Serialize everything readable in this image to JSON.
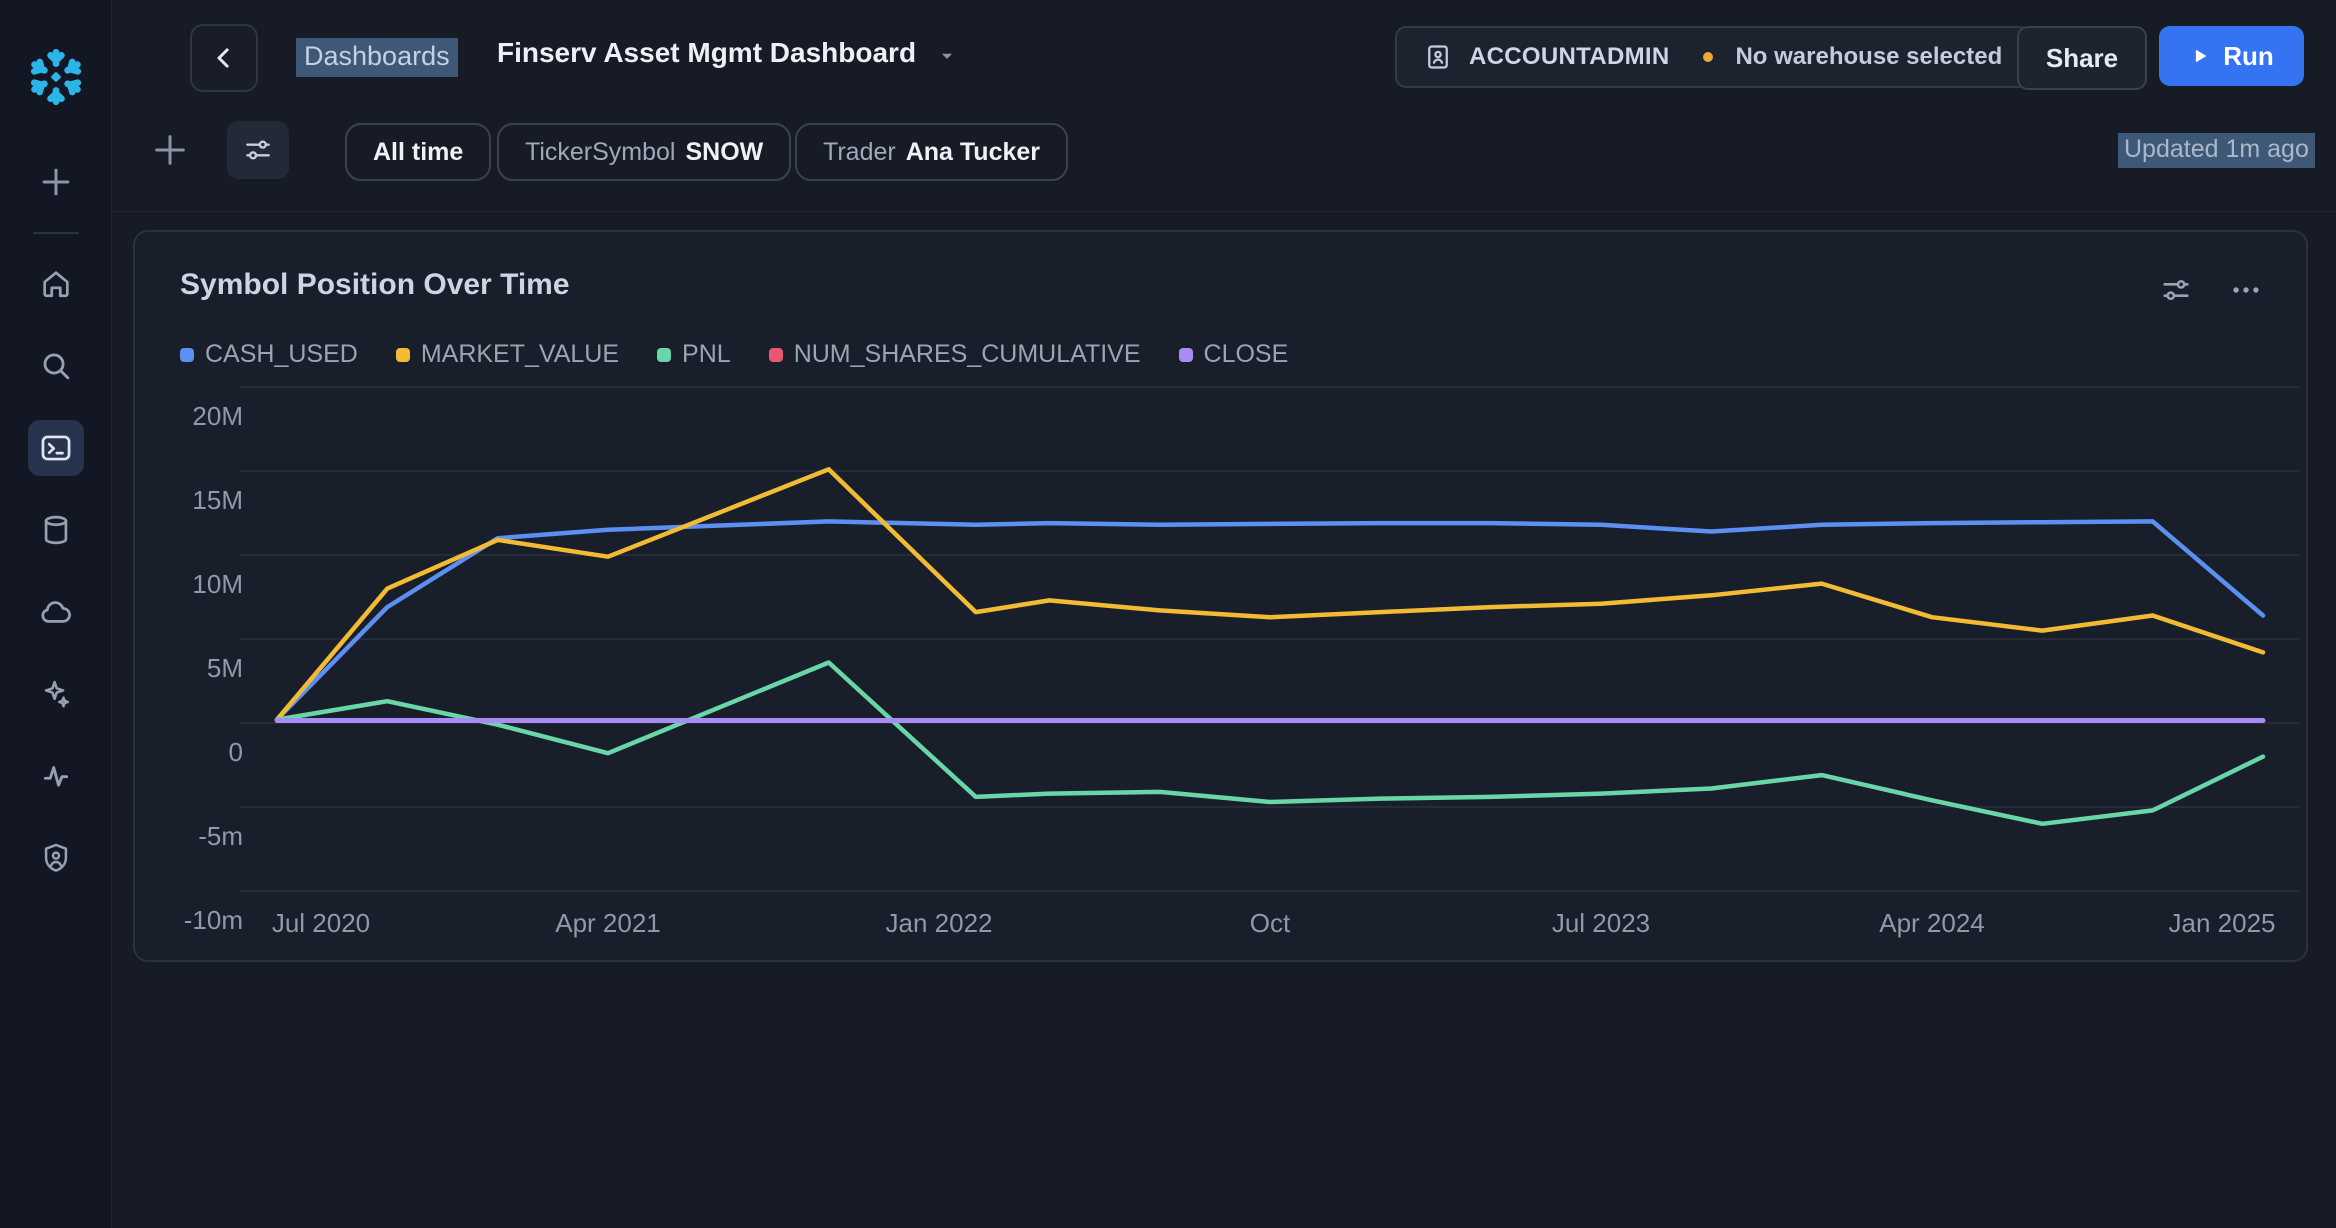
{
  "sidebar": {
    "icons": [
      "snowflake-logo",
      "plus-icon",
      "home-icon",
      "search-icon",
      "terminal-icon",
      "database-icon",
      "cloud-icon",
      "sparkles-icon",
      "activity-icon",
      "shield-user-icon"
    ],
    "active_item": "terminal"
  },
  "header": {
    "breadcrumb": "Dashboards",
    "title": "Finserv Asset Mgmt Dashboard",
    "role": "ACCOUNTADMIN",
    "warehouse_status": "No warehouse selected",
    "share_label": "Share",
    "run_label": "Run"
  },
  "filters": {
    "time_range": "All time",
    "ticker_label": "TickerSymbol",
    "ticker_value": "SNOW",
    "trader_label": "Trader",
    "trader_value": "Ana Tucker"
  },
  "panel": {
    "title": "Symbol Position Over Time",
    "updated": "Updated 1m ago",
    "more_icon": "ellipsis",
    "settings_icon": "sliders"
  },
  "chart_data": {
    "type": "line",
    "title": "Symbol Position Over Time",
    "xlabel": "",
    "ylabel": "",
    "x_unit": "months_since_jul_2020",
    "x": [
      0,
      3,
      6,
      9,
      15,
      19,
      21,
      24,
      27,
      30,
      33,
      36,
      39,
      42,
      45,
      48,
      51,
      54
    ],
    "series": [
      {
        "name": "CASH_USED",
        "color": "#5b8ff2",
        "values": [
          0.2,
          6.9,
          11.0,
          11.5,
          12.0,
          11.8,
          11.9,
          11.8,
          11.85,
          11.9,
          11.9,
          11.8,
          11.4,
          11.8,
          11.9,
          11.95,
          12.0,
          6.4
        ]
      },
      {
        "name": "MARKET_VALUE",
        "color": "#f1bc34",
        "values": [
          0.2,
          8.0,
          10.9,
          9.9,
          15.1,
          6.6,
          7.3,
          6.7,
          6.3,
          6.6,
          6.9,
          7.1,
          7.6,
          8.3,
          6.3,
          5.5,
          6.4,
          4.2
        ]
      },
      {
        "name": "PNL",
        "color": "#69d6a8",
        "values": [
          0.2,
          1.3,
          -0.1,
          -1.8,
          3.6,
          -4.4,
          -4.2,
          -4.1,
          -4.7,
          -4.5,
          -4.4,
          -4.2,
          -3.9,
          -3.1,
          -4.6,
          -6.0,
          -5.2,
          -2.0
        ]
      },
      {
        "name": "NUM_SHARES_CUMULATIVE",
        "color": "#e8566f",
        "values": [
          0.1,
          0.1,
          0.1,
          0.1,
          0.1,
          0.1,
          0.1,
          0.1,
          0.1,
          0.1,
          0.1,
          0.1,
          0.1,
          0.1,
          0.1,
          0.1,
          0.1,
          0.1
        ]
      },
      {
        "name": "CLOSE",
        "color": "#a98bf5",
        "values": [
          0.15,
          0.15,
          0.15,
          0.15,
          0.15,
          0.15,
          0.15,
          0.15,
          0.15,
          0.15,
          0.15,
          0.15,
          0.15,
          0.15,
          0.15,
          0.15,
          0.15,
          0.15
        ]
      }
    ],
    "y_ticks": [
      {
        "label": "20M",
        "value": 20
      },
      {
        "label": "15M",
        "value": 15
      },
      {
        "label": "10M",
        "value": 10
      },
      {
        "label": "5M",
        "value": 5
      },
      {
        "label": "0",
        "value": 0
      },
      {
        "label": "-5m",
        "value": -5
      },
      {
        "label": "-10m",
        "value": -10
      }
    ],
    "x_ticks": [
      {
        "label": "Jul 2020",
        "month": 0
      },
      {
        "label": "Apr 2021",
        "month": 9
      },
      {
        "label": "Jan 2022",
        "month": 18
      },
      {
        "label": "Oct",
        "month": 27
      },
      {
        "label": "Jul 2023",
        "month": 36
      },
      {
        "label": "Apr 2024",
        "month": 45
      },
      {
        "label": "Jan 2025",
        "month": 54
      }
    ],
    "ylim": [
      -10,
      22
    ],
    "grid": "horizontal",
    "legend_position": "top-left"
  }
}
